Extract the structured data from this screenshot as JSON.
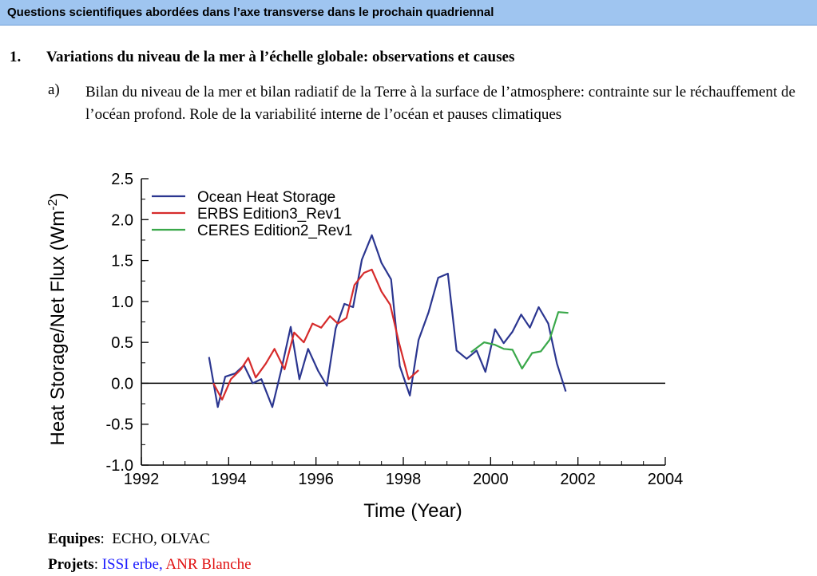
{
  "banner": {
    "title": "Questions scientifiques abordées dans l’axe transverse dans le prochain quadriennal"
  },
  "section1": {
    "number": "1.",
    "title": "Variations du niveau de la mer à l’échelle globale: observations et causes",
    "sub": {
      "letter": "a)",
      "text": "Bilan du niveau de la mer et bilan radiatif de la Terre à la surface de l’atmosphere: contrainte sur le réchauffement de l’océan profond. Role de la variabilité interne de l’océan et pauses climatiques"
    }
  },
  "footer": {
    "equipes_label": "Equipes",
    "equipes_sep": ":",
    "equipes_value": "ECHO, OLVAC",
    "projets_label": "Projets",
    "projets_sep": ":",
    "projet_1": "ISSI erbe,",
    "projet_2": "ANR Blanche",
    "projet_1_color": "#1a1aff",
    "projet_2_color": "#e01010"
  },
  "chart_data": {
    "type": "line",
    "xlabel": "Time (Year)",
    "ylabel": "Heat Storage/Net Flux (Wm",
    "ylabel_sup": "-2",
    "ylabel_close": ")",
    "xlim": [
      1992,
      2004
    ],
    "ylim": [
      -1.0,
      2.5
    ],
    "xticks": [
      "1992",
      "1994",
      "1996",
      "1998",
      "2000",
      "2002",
      "2004"
    ],
    "yticks": [
      "-1.0",
      "-0.5",
      "0.0",
      "0.5",
      "1.0",
      "1.5",
      "2.0",
      "2.5"
    ],
    "zero_line": true,
    "legend": "top-left",
    "series": [
      {
        "name": "Ocean Heat Storage",
        "color": "#2b3690",
        "points": [
          [
            1993.55,
            0.32
          ],
          [
            1993.75,
            -0.29
          ],
          [
            1993.92,
            0.08
          ],
          [
            1994.15,
            0.12
          ],
          [
            1994.35,
            0.22
          ],
          [
            1994.55,
            0.0
          ],
          [
            1994.75,
            0.05
          ],
          [
            1995.0,
            -0.29
          ],
          [
            1995.2,
            0.15
          ],
          [
            1995.42,
            0.69
          ],
          [
            1995.62,
            0.05
          ],
          [
            1995.82,
            0.42
          ],
          [
            1996.05,
            0.15
          ],
          [
            1996.25,
            -0.03
          ],
          [
            1996.45,
            0.67
          ],
          [
            1996.65,
            0.97
          ],
          [
            1996.85,
            0.93
          ],
          [
            1997.05,
            1.51
          ],
          [
            1997.28,
            1.81
          ],
          [
            1997.5,
            1.47
          ],
          [
            1997.72,
            1.27
          ],
          [
            1997.92,
            0.21
          ],
          [
            1998.15,
            -0.15
          ],
          [
            1998.35,
            0.53
          ],
          [
            1998.58,
            0.87
          ],
          [
            1998.8,
            1.29
          ],
          [
            1999.02,
            1.34
          ],
          [
            1999.22,
            0.4
          ],
          [
            1999.45,
            0.3
          ],
          [
            1999.68,
            0.4
          ],
          [
            1999.88,
            0.14
          ],
          [
            2000.1,
            0.66
          ],
          [
            2000.3,
            0.49
          ],
          [
            2000.5,
            0.63
          ],
          [
            2000.7,
            0.84
          ],
          [
            2000.9,
            0.68
          ],
          [
            2001.1,
            0.93
          ],
          [
            2001.32,
            0.73
          ],
          [
            2001.52,
            0.24
          ],
          [
            2001.72,
            -0.1
          ]
        ]
      },
      {
        "name": "ERBS Edition3_Rev1",
        "color": "#d62b2b",
        "points": [
          [
            1993.65,
            0.0
          ],
          [
            1993.85,
            -0.2
          ],
          [
            1994.05,
            0.05
          ],
          [
            1994.28,
            0.17
          ],
          [
            1994.45,
            0.31
          ],
          [
            1994.62,
            0.07
          ],
          [
            1994.85,
            0.24
          ],
          [
            1995.05,
            0.42
          ],
          [
            1995.28,
            0.17
          ],
          [
            1995.5,
            0.62
          ],
          [
            1995.72,
            0.5
          ],
          [
            1995.92,
            0.73
          ],
          [
            1996.12,
            0.68
          ],
          [
            1996.32,
            0.82
          ],
          [
            1996.5,
            0.73
          ],
          [
            1996.7,
            0.8
          ],
          [
            1996.88,
            1.2
          ],
          [
            1997.1,
            1.35
          ],
          [
            1997.28,
            1.39
          ],
          [
            1997.5,
            1.12
          ],
          [
            1997.7,
            0.96
          ],
          [
            1997.9,
            0.5
          ],
          [
            1998.12,
            0.05
          ],
          [
            1998.35,
            0.16
          ]
        ]
      },
      {
        "name": "CERES Edition2_Rev1",
        "color": "#3aa84a",
        "points": [
          [
            1999.55,
            0.38
          ],
          [
            1999.85,
            0.5
          ],
          [
            2000.1,
            0.47
          ],
          [
            2000.3,
            0.42
          ],
          [
            2000.5,
            0.41
          ],
          [
            2000.72,
            0.18
          ],
          [
            2000.95,
            0.37
          ],
          [
            2001.15,
            0.39
          ],
          [
            2001.35,
            0.53
          ],
          [
            2001.55,
            0.87
          ],
          [
            2001.78,
            0.86
          ]
        ]
      }
    ]
  }
}
